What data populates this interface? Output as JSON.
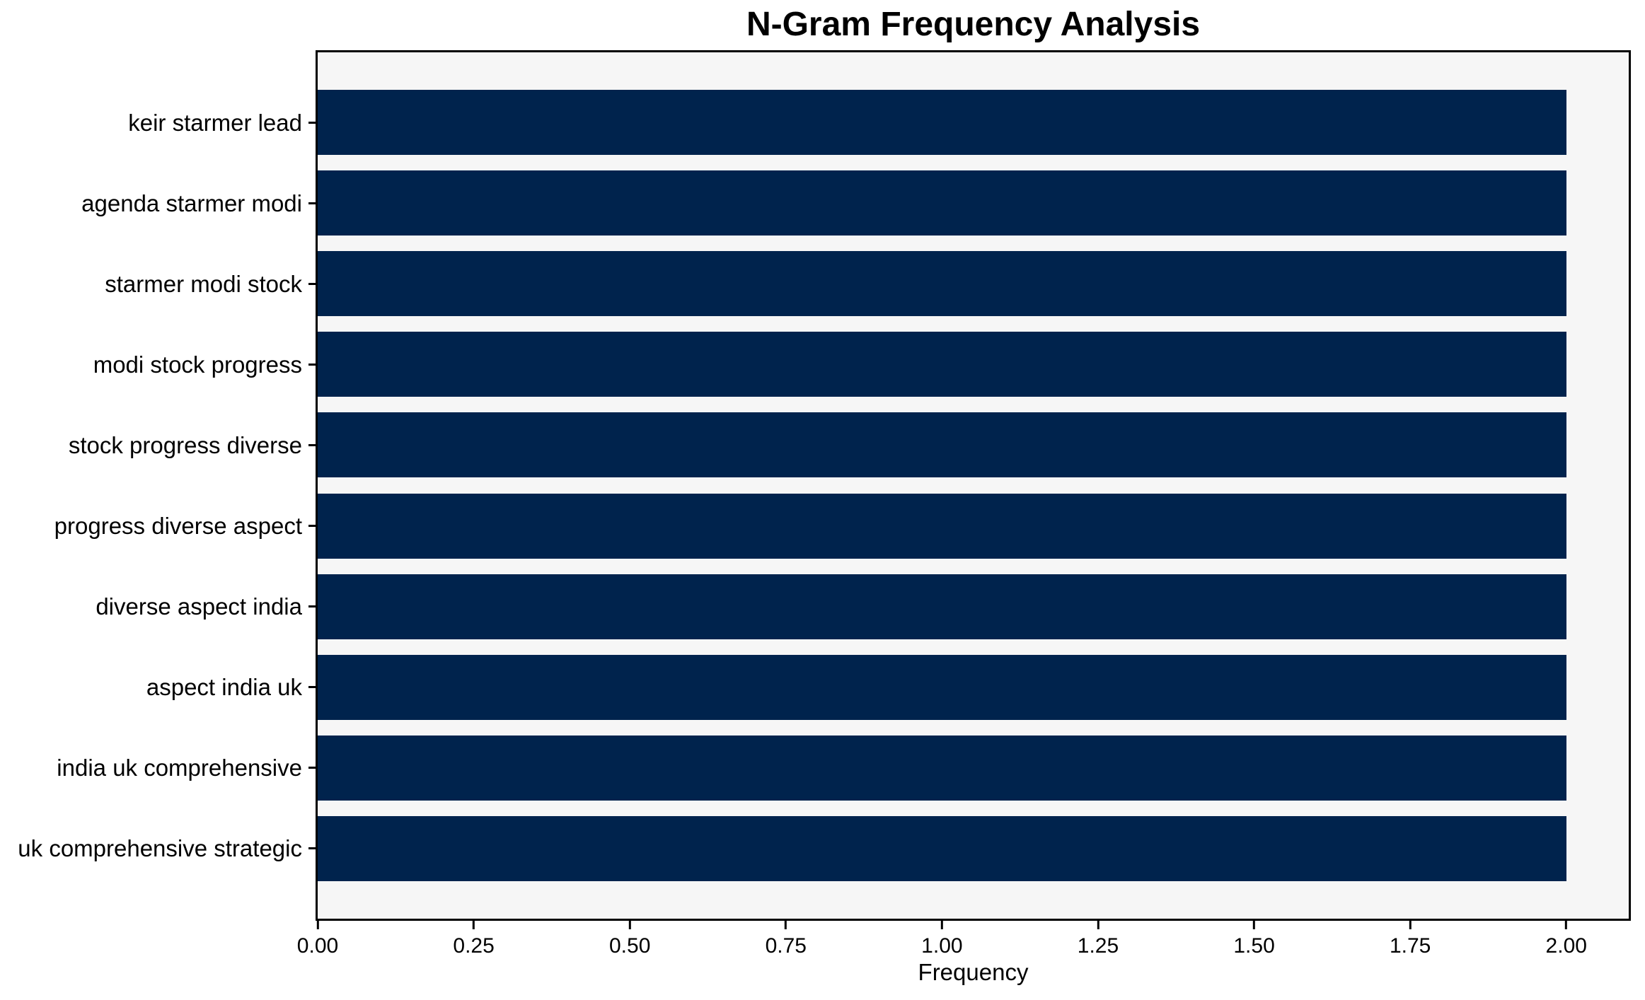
{
  "chart_data": {
    "type": "bar",
    "orientation": "horizontal",
    "title": "N-Gram Frequency Analysis",
    "xlabel": "Frequency",
    "ylabel": "",
    "categories": [
      "keir starmer lead",
      "agenda starmer modi",
      "starmer modi stock",
      "modi stock progress",
      "stock progress diverse",
      "progress diverse aspect",
      "diverse aspect india",
      "aspect india uk",
      "india uk comprehensive",
      "uk comprehensive strategic"
    ],
    "values": [
      2,
      2,
      2,
      2,
      2,
      2,
      2,
      2,
      2,
      2
    ],
    "xlim": [
      0,
      2.1
    ],
    "xticks": [
      "0.00",
      "0.25",
      "0.50",
      "0.75",
      "1.00",
      "1.25",
      "1.50",
      "1.75",
      "2.00"
    ],
    "grid": false,
    "legend": null,
    "bar_color": "#00234d",
    "plot_bg": "#f6f6f6",
    "spine_color": "#000000",
    "text_color": "#000000"
  }
}
